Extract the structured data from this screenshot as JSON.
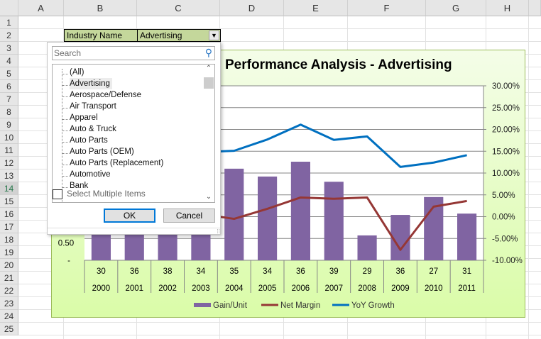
{
  "columns": [
    "A",
    "B",
    "C",
    "D",
    "E",
    "F",
    "G",
    "H"
  ],
  "rows": [
    "1",
    "2",
    "3",
    "4",
    "5",
    "6",
    "7",
    "8",
    "9",
    "10",
    "11",
    "12",
    "13",
    "14",
    "15",
    "16",
    "17",
    "18",
    "19",
    "20",
    "21",
    "22",
    "23",
    "24",
    "25"
  ],
  "filter": {
    "label": "Industry Name",
    "value": "Advertising",
    "icon": "filter-dropdown-icon"
  },
  "popup": {
    "search_placeholder": "Search",
    "items": [
      "(All)",
      "Advertising",
      "Aerospace/Defense",
      "Air Transport",
      "Apparel",
      "Auto & Truck",
      "Auto Parts",
      "Auto Parts (OEM)",
      "Auto Parts (Replacement)",
      "Automotive",
      "Bank"
    ],
    "selected": "Advertising",
    "multi_label": "Select Multiple Items",
    "ok": "OK",
    "cancel": "Cancel"
  },
  "colors": {
    "bar": "#8064a2",
    "net_margin": "#953735",
    "yoy": "#0070c0"
  },
  "chart_data": {
    "type": "bar+line",
    "title": "Performance Analysis - Advertising",
    "categories": [
      "2000",
      "2001",
      "2002",
      "2003",
      "2004",
      "2005",
      "2006",
      "2007",
      "2008",
      "2009",
      "2010",
      "2011"
    ],
    "table_row": [
      "30",
      "36",
      "38",
      "34",
      "35",
      "34",
      "36",
      "39",
      "29",
      "36",
      "27",
      "31"
    ],
    "left_axis": {
      "visible_ticks": [
        "0.50",
        "-"
      ],
      "ylim": [
        0,
        4
      ]
    },
    "right_axis": {
      "ticks": [
        "30.00%",
        "25.00%",
        "20.00%",
        "15.00%",
        "10.00%",
        "5.00%",
        "0.00%",
        "-5.00%",
        "-10.00%"
      ],
      "ylim": [
        -10,
        30
      ]
    },
    "grid": true,
    "legend_placement": "bottom",
    "series": [
      {
        "name": "Gain/Unit",
        "type": "bar",
        "axis": "left",
        "values": [
          0.8,
          0.8,
          0.8,
          0.8,
          2.1,
          1.92,
          2.26,
          1.8,
          0.57,
          1.04,
          1.45,
          1.07
        ]
      },
      {
        "name": "Net Margin",
        "type": "line",
        "axis": "right",
        "values": [
          null,
          null,
          null,
          0.6,
          -0.5,
          1.8,
          4.4,
          4.1,
          4.4,
          -7.6,
          2.3,
          3.6
        ]
      },
      {
        "name": "YoY Growth",
        "type": "line",
        "axis": "right",
        "values": [
          null,
          null,
          null,
          14.8,
          15.1,
          17.7,
          21.1,
          17.6,
          18.4,
          11.4,
          12.4,
          14.1
        ]
      }
    ]
  }
}
